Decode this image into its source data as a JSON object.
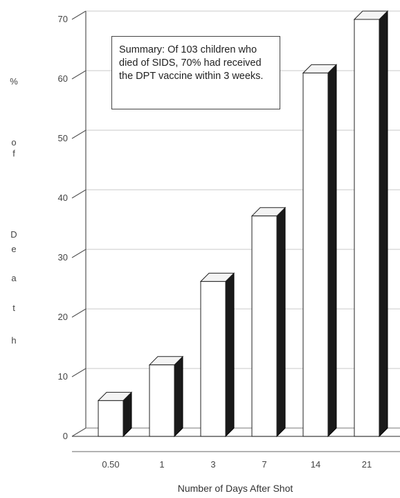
{
  "chart_data": {
    "type": "bar",
    "categories": [
      "0.50",
      "1",
      "3",
      "7",
      "14",
      "21"
    ],
    "values": [
      6,
      12,
      26,
      37,
      61,
      70
    ],
    "xlabel": "Number of Days After Shot",
    "ylabel_chars": [
      "%",
      "o",
      "f",
      "D",
      "e",
      "a",
      "t",
      "h"
    ],
    "ylim": [
      0,
      70
    ],
    "yticks": [
      "0",
      "10",
      "20",
      "30",
      "40",
      "50",
      "60",
      "70"
    ],
    "annotation": "Summary: Of 103 children who died of SIDS, 70% had received the DPT vaccine within 3 weeks.",
    "grid": true,
    "colors": {
      "bar_front": "#ffffff",
      "bar_side": "#1a1a1a",
      "axis": "#555555"
    }
  }
}
